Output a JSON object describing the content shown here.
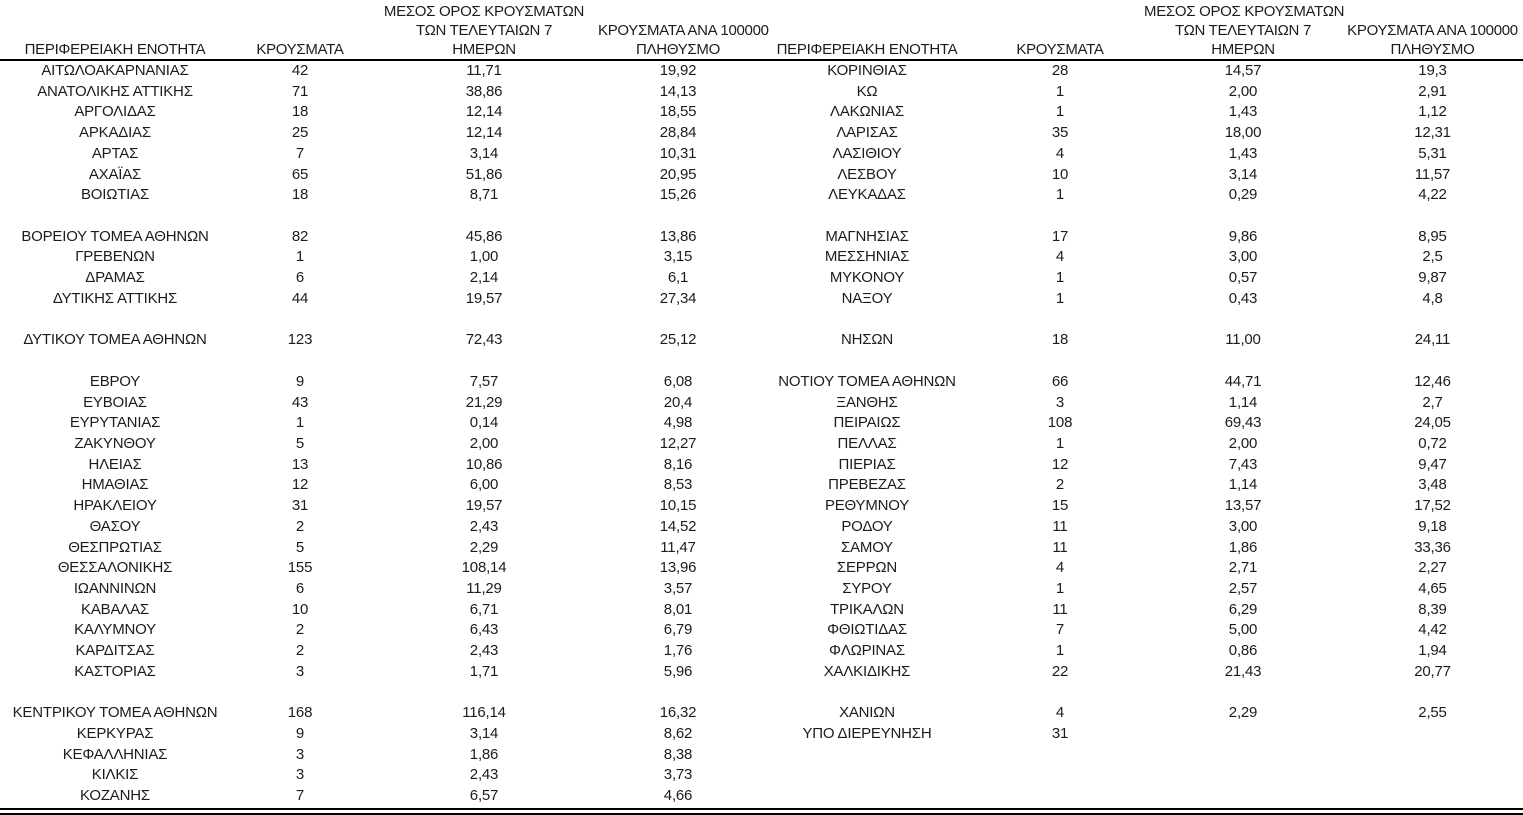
{
  "headers": {
    "region": "ΠΕΡΙΦΕΡΕΙΑΚΗ ΕΝΟΤΗΤΑ",
    "cases": "ΚΡΟΥΣΜΑΤΑ",
    "avg7_line1": "ΜΕΣΟΣ ΟΡΟΣ ΚΡΟΥΣΜΑΤΩΝ",
    "avg7_line2": "ΤΩΝ ΤΕΛΕΥΤΑΙΩΝ 7",
    "avg7_line3": "ΗΜΕΡΩΝ",
    "per100k_line1": "ΚΡΟΥΣΜΑΤΑ ΑΝΑ 100000",
    "per100k_line2": "ΠΛΗΘΥΣΜΟ"
  },
  "left_rows": [
    [
      "ΑΙΤΩΛΟΑΚΑΡΝΑΝΙΑΣ",
      "42",
      "11,71",
      "19,92"
    ],
    [
      "ΑΝΑΤΟΛΙΚΗΣ ΑΤΤΙΚΗΣ",
      "71",
      "38,86",
      "14,13"
    ],
    [
      "ΑΡΓΟΛΙΔΑΣ",
      "18",
      "12,14",
      "18,55"
    ],
    [
      "ΑΡΚΑΔΙΑΣ",
      "25",
      "12,14",
      "28,84"
    ],
    [
      "ΑΡΤΑΣ",
      "7",
      "3,14",
      "10,31"
    ],
    [
      "ΑΧΑΪΑΣ",
      "65",
      "51,86",
      "20,95"
    ],
    [
      "ΒΟΙΩΤΙΑΣ",
      "18",
      "8,71",
      "15,26"
    ],
    [
      "",
      "",
      "",
      ""
    ],
    [
      "ΒΟΡΕΙΟΥ ΤΟΜΕΑ ΑΘΗΝΩΝ",
      "82",
      "45,86",
      "13,86"
    ],
    [
      "ΓΡΕΒΕΝΩΝ",
      "1",
      "1,00",
      "3,15"
    ],
    [
      "ΔΡΑΜΑΣ",
      "6",
      "2,14",
      "6,1"
    ],
    [
      "ΔΥΤΙΚΗΣ ΑΤΤΙΚΗΣ",
      "44",
      "19,57",
      "27,34"
    ],
    [
      "",
      "",
      "",
      ""
    ],
    [
      "ΔΥΤΙΚΟΥ ΤΟΜΕΑ ΑΘΗΝΩΝ",
      "123",
      "72,43",
      "25,12"
    ],
    [
      "",
      "",
      "",
      ""
    ],
    [
      "ΕΒΡΟΥ",
      "9",
      "7,57",
      "6,08"
    ],
    [
      "ΕΥΒΟΙΑΣ",
      "43",
      "21,29",
      "20,4"
    ],
    [
      "ΕΥΡΥΤΑΝΙΑΣ",
      "1",
      "0,14",
      "4,98"
    ],
    [
      "ΖΑΚΥΝΘΟΥ",
      "5",
      "2,00",
      "12,27"
    ],
    [
      "ΗΛΕΙΑΣ",
      "13",
      "10,86",
      "8,16"
    ],
    [
      "ΗΜΑΘΙΑΣ",
      "12",
      "6,00",
      "8,53"
    ],
    [
      "ΗΡΑΚΛΕΙΟΥ",
      "31",
      "19,57",
      "10,15"
    ],
    [
      "ΘΑΣΟΥ",
      "2",
      "2,43",
      "14,52"
    ],
    [
      "ΘΕΣΠΡΩΤΙΑΣ",
      "5",
      "2,29",
      "11,47"
    ],
    [
      "ΘΕΣΣΑΛΟΝΙΚΗΣ",
      "155",
      "108,14",
      "13,96"
    ],
    [
      "ΙΩΑΝΝΙΝΩΝ",
      "6",
      "11,29",
      "3,57"
    ],
    [
      "ΚΑΒΑΛΑΣ",
      "10",
      "6,71",
      "8,01"
    ],
    [
      "ΚΑΛΥΜΝΟΥ",
      "2",
      "6,43",
      "6,79"
    ],
    [
      "ΚΑΡΔΙΤΣΑΣ",
      "2",
      "2,43",
      "1,76"
    ],
    [
      "ΚΑΣΤΟΡΙΑΣ",
      "3",
      "1,71",
      "5,96"
    ],
    [
      "",
      "",
      "",
      ""
    ],
    [
      "ΚΕΝΤΡΙΚΟΥ ΤΟΜΕΑ ΑΘΗΝΩΝ",
      "168",
      "116,14",
      "16,32"
    ],
    [
      "ΚΕΡΚΥΡΑΣ",
      "9",
      "3,14",
      "8,62"
    ],
    [
      "ΚΕΦΑΛΛΗΝΙΑΣ",
      "3",
      "1,86",
      "8,38"
    ],
    [
      "ΚΙΛΚΙΣ",
      "3",
      "2,43",
      "3,73"
    ],
    [
      "ΚΟΖΑΝΗΣ",
      "7",
      "6,57",
      "4,66"
    ]
  ],
  "right_rows": [
    [
      "ΚΟΡΙΝΘΙΑΣ",
      "28",
      "14,57",
      "19,3"
    ],
    [
      "ΚΩ",
      "1",
      "2,00",
      "2,91"
    ],
    [
      "ΛΑΚΩΝΙΑΣ",
      "1",
      "1,43",
      "1,12"
    ],
    [
      "ΛΑΡΙΣΑΣ",
      "35",
      "18,00",
      "12,31"
    ],
    [
      "ΛΑΣΙΘΙΟΥ",
      "4",
      "1,43",
      "5,31"
    ],
    [
      "ΛΕΣΒΟΥ",
      "10",
      "3,14",
      "11,57"
    ],
    [
      "ΛΕΥΚΑΔΑΣ",
      "1",
      "0,29",
      "4,22"
    ],
    [
      "",
      "",
      "",
      ""
    ],
    [
      "ΜΑΓΝΗΣΙΑΣ",
      "17",
      "9,86",
      "8,95"
    ],
    [
      "ΜΕΣΣΗΝΙΑΣ",
      "4",
      "3,00",
      "2,5"
    ],
    [
      "ΜΥΚΟΝΟΥ",
      "1",
      "0,57",
      "9,87"
    ],
    [
      "ΝΑΞΟΥ",
      "1",
      "0,43",
      "4,8"
    ],
    [
      "",
      "",
      "",
      ""
    ],
    [
      "ΝΗΣΩΝ",
      "18",
      "11,00",
      "24,11"
    ],
    [
      "",
      "",
      "",
      ""
    ],
    [
      "ΝΟΤΙΟΥ ΤΟΜΕΑ ΑΘΗΝΩΝ",
      "66",
      "44,71",
      "12,46"
    ],
    [
      "ΞΑΝΘΗΣ",
      "3",
      "1,14",
      "2,7"
    ],
    [
      "ΠΕΙΡΑΙΩΣ",
      "108",
      "69,43",
      "24,05"
    ],
    [
      "ΠΕΛΛΑΣ",
      "1",
      "2,00",
      "0,72"
    ],
    [
      "ΠΙΕΡΙΑΣ",
      "12",
      "7,43",
      "9,47"
    ],
    [
      "ΠΡΕΒΕΖΑΣ",
      "2",
      "1,14",
      "3,48"
    ],
    [
      "ΡΕΘΥΜΝΟΥ",
      "15",
      "13,57",
      "17,52"
    ],
    [
      "ΡΟΔΟΥ",
      "11",
      "3,00",
      "9,18"
    ],
    [
      "ΣΑΜΟΥ",
      "11",
      "1,86",
      "33,36"
    ],
    [
      "ΣΕΡΡΩΝ",
      "4",
      "2,71",
      "2,27"
    ],
    [
      "ΣΥΡΟΥ",
      "1",
      "2,57",
      "4,65"
    ],
    [
      "ΤΡΙΚΑΛΩΝ",
      "11",
      "6,29",
      "8,39"
    ],
    [
      "ΦΘΙΩΤΙΔΑΣ",
      "7",
      "5,00",
      "4,42"
    ],
    [
      "ΦΛΩΡΙΝΑΣ",
      "1",
      "0,86",
      "1,94"
    ],
    [
      "ΧΑΛΚΙΔΙΚΗΣ",
      "22",
      "21,43",
      "20,77"
    ],
    [
      "",
      "",
      "",
      ""
    ],
    [
      "ΧΑΝΙΩΝ",
      "4",
      "2,29",
      "2,55"
    ],
    [
      "ΥΠΟ ΔΙΕΡΕΥΝΗΣΗ",
      "31",
      "",
      ""
    ],
    [
      "",
      "",
      "",
      ""
    ],
    [
      "",
      "",
      "",
      ""
    ],
    [
      "",
      "",
      "",
      ""
    ]
  ]
}
